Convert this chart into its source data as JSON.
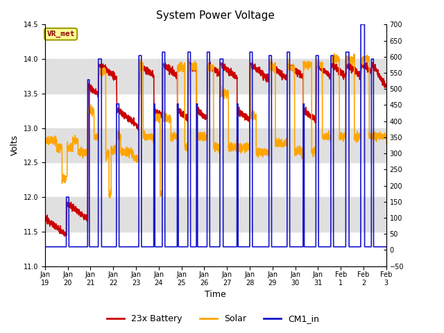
{
  "title": "System Power Voltage",
  "xlabel": "Time",
  "ylabel": "Volts",
  "ylim_left": [
    11.0,
    14.5
  ],
  "ylim_right": [
    -50,
    700
  ],
  "yticks_left": [
    11.0,
    11.5,
    12.0,
    12.5,
    13.0,
    13.5,
    14.0,
    14.5
  ],
  "yticks_right": [
    -50,
    0,
    50,
    100,
    150,
    200,
    250,
    300,
    350,
    400,
    450,
    500,
    550,
    600,
    650,
    700
  ],
  "x_tick_labels": [
    "Jan 19",
    "Jan 20",
    "Jan 21",
    "Jan 22",
    "Jan 23",
    "Jan 24",
    "Jan 25",
    "Jan 26",
    "Jan 27",
    "Jan 28",
    "Jan 29",
    "Jan 30",
    "Jan 31",
    "Feb 1",
    "Feb 2",
    "Feb 3"
  ],
  "annotation_text": "VR_met",
  "annotation_color": "#8B0000",
  "annotation_bg": "#FFFF99",
  "annotation_edge": "#999900",
  "bg_band_color": "#E0E0E0",
  "bg_band_ranges": [
    [
      11.5,
      12.0
    ],
    [
      12.5,
      13.0
    ],
    [
      13.5,
      14.0
    ]
  ],
  "legend_entries": [
    "23x Battery",
    "Solar",
    "CM1_in"
  ],
  "colors": [
    "#CC0000",
    "#FFA500",
    "#1515CC"
  ],
  "lw": 1.2,
  "title_fontsize": 11,
  "tick_fontsize": 7,
  "label_fontsize": 9,
  "legend_fontsize": 9,
  "n_days": 16,
  "spike_days": [
    1.0,
    2.0,
    2.5,
    3.35,
    4.4,
    5.1,
    5.5,
    6.2,
    6.7,
    7.1,
    7.6,
    8.2,
    9.0,
    9.6,
    10.5,
    11.35,
    12.1,
    12.7,
    13.4,
    14.1,
    14.8,
    15.3
  ],
  "spike_widths": [
    0.12,
    0.08,
    0.15,
    0.12,
    0.12,
    0.05,
    0.12,
    0.05,
    0.12,
    0.05,
    0.12,
    0.15,
    0.05,
    0.12,
    0.12,
    0.12,
    0.05,
    0.12,
    0.12,
    0.15,
    0.18,
    0.1
  ],
  "spike_heights_blue": [
    12.0,
    13.7,
    14.0,
    13.35,
    14.05,
    13.35,
    14.1,
    13.35,
    14.1,
    13.35,
    14.1,
    14.0,
    13.35,
    14.1,
    14.05,
    14.1,
    13.35,
    14.05,
    14.05,
    14.1,
    14.6,
    14.0
  ],
  "spike_heights_orange": [
    12.3,
    13.25,
    13.8,
    12.95,
    14.0,
    12.9,
    13.9,
    12.9,
    14.0,
    12.9,
    13.9,
    13.9,
    12.9,
    13.9,
    14.0,
    14.0,
    12.9,
    14.0,
    14.0,
    14.0,
    14.0,
    12.85
  ]
}
